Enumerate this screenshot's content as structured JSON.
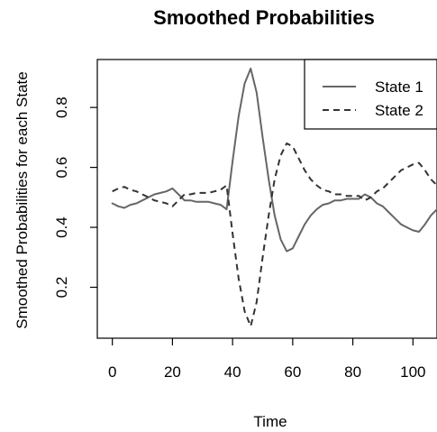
{
  "chart_data": {
    "type": "line",
    "title": "Smoothed Probabilities",
    "xlabel": "Time",
    "ylabel": "Smoothed Probabilities for each State",
    "xlim": [
      -5,
      108
    ],
    "ylim": [
      0.03,
      0.96
    ],
    "xticks": [
      0,
      20,
      40,
      60,
      80,
      100
    ],
    "yticks": [
      0.2,
      0.4,
      0.6,
      0.8
    ],
    "grid": false,
    "legend_position": "top-right",
    "series": [
      {
        "name": "State 1",
        "style": "solid",
        "color": "#666666",
        "x": [
          0,
          2,
          4,
          6,
          8,
          10,
          12,
          14,
          16,
          18,
          20,
          22,
          24,
          26,
          28,
          30,
          32,
          34,
          36,
          38,
          40,
          42,
          44,
          46,
          48,
          50,
          52,
          54,
          56,
          58,
          60,
          62,
          64,
          66,
          68,
          70,
          72,
          74,
          76,
          78,
          80,
          82,
          84,
          86,
          88,
          90,
          92,
          94,
          96,
          98,
          100,
          102,
          104,
          106,
          108
        ],
        "values": [
          0.48,
          0.47,
          0.465,
          0.475,
          0.48,
          0.49,
          0.5,
          0.51,
          0.515,
          0.52,
          0.53,
          0.51,
          0.49,
          0.49,
          0.485,
          0.485,
          0.485,
          0.48,
          0.475,
          0.46,
          0.62,
          0.77,
          0.88,
          0.93,
          0.85,
          0.7,
          0.56,
          0.44,
          0.36,
          0.32,
          0.33,
          0.37,
          0.41,
          0.44,
          0.46,
          0.475,
          0.48,
          0.49,
          0.49,
          0.495,
          0.495,
          0.495,
          0.51,
          0.5,
          0.48,
          0.47,
          0.45,
          0.43,
          0.41,
          0.4,
          0.39,
          0.385,
          0.41,
          0.44,
          0.46
        ]
      },
      {
        "name": "State 2",
        "style": "dashed",
        "color": "#333333",
        "x": [
          0,
          2,
          4,
          6,
          8,
          10,
          12,
          14,
          16,
          18,
          20,
          22,
          24,
          26,
          28,
          30,
          32,
          34,
          36,
          38,
          40,
          42,
          44,
          46,
          48,
          50,
          52,
          54,
          56,
          58,
          60,
          62,
          64,
          66,
          68,
          70,
          72,
          74,
          76,
          78,
          80,
          82,
          84,
          86,
          88,
          90,
          92,
          94,
          96,
          98,
          100,
          102,
          104,
          106,
          108
        ],
        "values": [
          0.52,
          0.53,
          0.535,
          0.525,
          0.52,
          0.51,
          0.5,
          0.49,
          0.485,
          0.48,
          0.47,
          0.49,
          0.51,
          0.51,
          0.515,
          0.515,
          0.515,
          0.52,
          0.525,
          0.54,
          0.38,
          0.23,
          0.12,
          0.07,
          0.15,
          0.3,
          0.44,
          0.56,
          0.64,
          0.68,
          0.67,
          0.63,
          0.59,
          0.56,
          0.54,
          0.525,
          0.52,
          0.51,
          0.51,
          0.505,
          0.505,
          0.505,
          0.49,
          0.5,
          0.52,
          0.53,
          0.55,
          0.57,
          0.59,
          0.6,
          0.61,
          0.615,
          0.59,
          0.56,
          0.54
        ]
      }
    ]
  }
}
